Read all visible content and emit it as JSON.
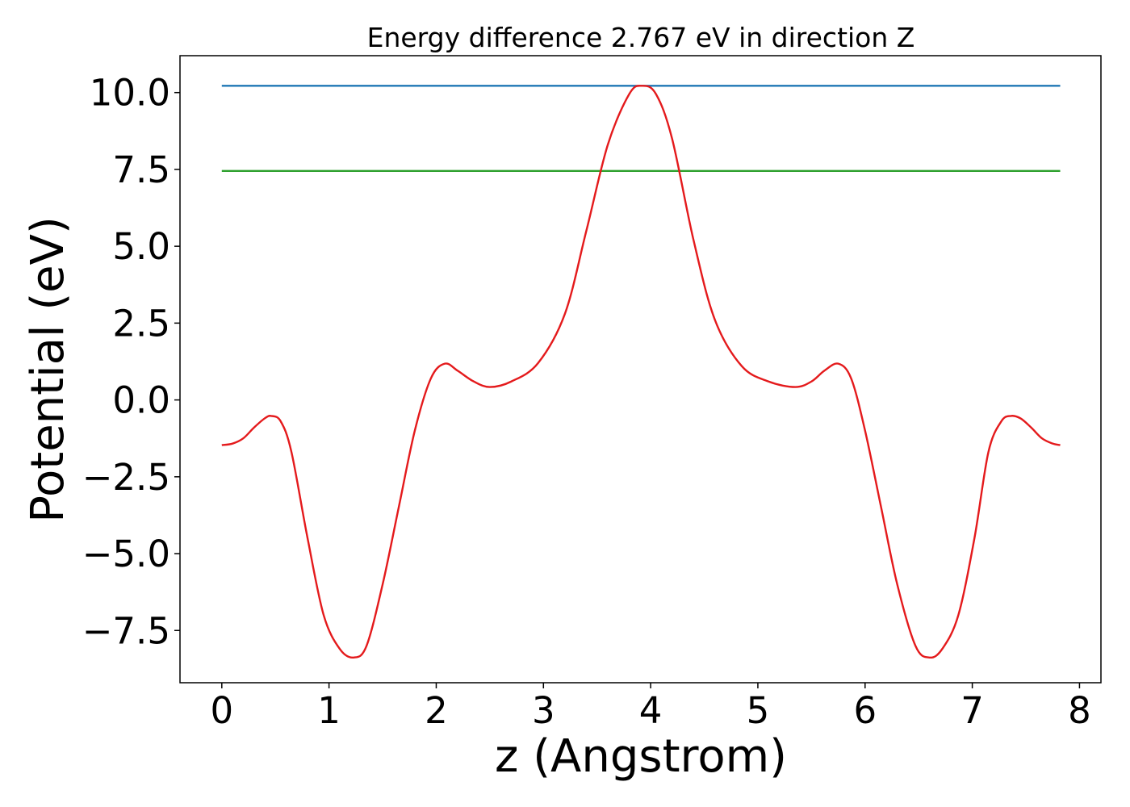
{
  "chart_data": {
    "type": "line",
    "title": "Energy difference 2.767 eV in direction Z",
    "xlabel": "z (Angstrom)",
    "ylabel": "Potential (eV)",
    "xlim": [
      -0.39,
      8.2
    ],
    "ylim": [
      -9.2,
      11.2
    ],
    "x_ticks": [
      0,
      1,
      2,
      3,
      4,
      5,
      6,
      7,
      8
    ],
    "x_tick_labels": [
      "0",
      "1",
      "2",
      "3",
      "4",
      "5",
      "6",
      "7",
      "8"
    ],
    "y_ticks": [
      -7.5,
      -5.0,
      -2.5,
      0.0,
      2.5,
      5.0,
      7.5,
      10.0
    ],
    "y_tick_labels": [
      "−7.5",
      "−5.0",
      "−2.5",
      "0.0",
      "2.5",
      "5.0",
      "7.5",
      "10.0"
    ],
    "grid": false,
    "series": [
      {
        "color": "#1f77b4",
        "x": [
          0,
          7.82
        ],
        "y": [
          10.22,
          10.22
        ]
      },
      {
        "color": "#2ca02c",
        "x": [
          0,
          7.82
        ],
        "y": [
          7.45,
          7.45
        ]
      },
      {
        "color": "#e41a1c",
        "x": [
          0.0,
          0.1,
          0.2,
          0.3,
          0.4,
          0.46,
          0.55,
          0.65,
          0.8,
          0.95,
          1.1,
          1.23,
          1.35,
          1.5,
          1.65,
          1.8,
          1.95,
          2.08,
          2.2,
          2.35,
          2.5,
          2.7,
          2.95,
          3.2,
          3.4,
          3.6,
          3.8,
          3.92,
          4.05,
          4.2,
          4.4,
          4.6,
          4.85,
          5.1,
          5.35,
          5.5,
          5.62,
          5.75,
          5.87,
          6.0,
          6.15,
          6.3,
          6.47,
          6.6,
          6.72,
          6.87,
          7.02,
          7.15,
          7.27,
          7.36,
          7.45,
          7.55,
          7.65,
          7.75,
          7.82
        ],
        "y": [
          -1.47,
          -1.42,
          -1.25,
          -0.9,
          -0.6,
          -0.52,
          -0.7,
          -1.7,
          -4.5,
          -7.0,
          -8.1,
          -8.38,
          -8.0,
          -6.0,
          -3.5,
          -1.0,
          0.7,
          1.18,
          0.95,
          0.6,
          0.42,
          0.6,
          1.2,
          2.8,
          5.5,
          8.3,
          9.95,
          10.22,
          9.95,
          8.5,
          5.2,
          2.6,
          1.1,
          0.6,
          0.42,
          0.6,
          0.95,
          1.18,
          0.7,
          -1.0,
          -3.5,
          -6.0,
          -8.0,
          -8.38,
          -8.1,
          -7.0,
          -4.5,
          -1.7,
          -0.7,
          -0.52,
          -0.6,
          -0.9,
          -1.25,
          -1.42,
          -1.47
        ]
      }
    ]
  }
}
